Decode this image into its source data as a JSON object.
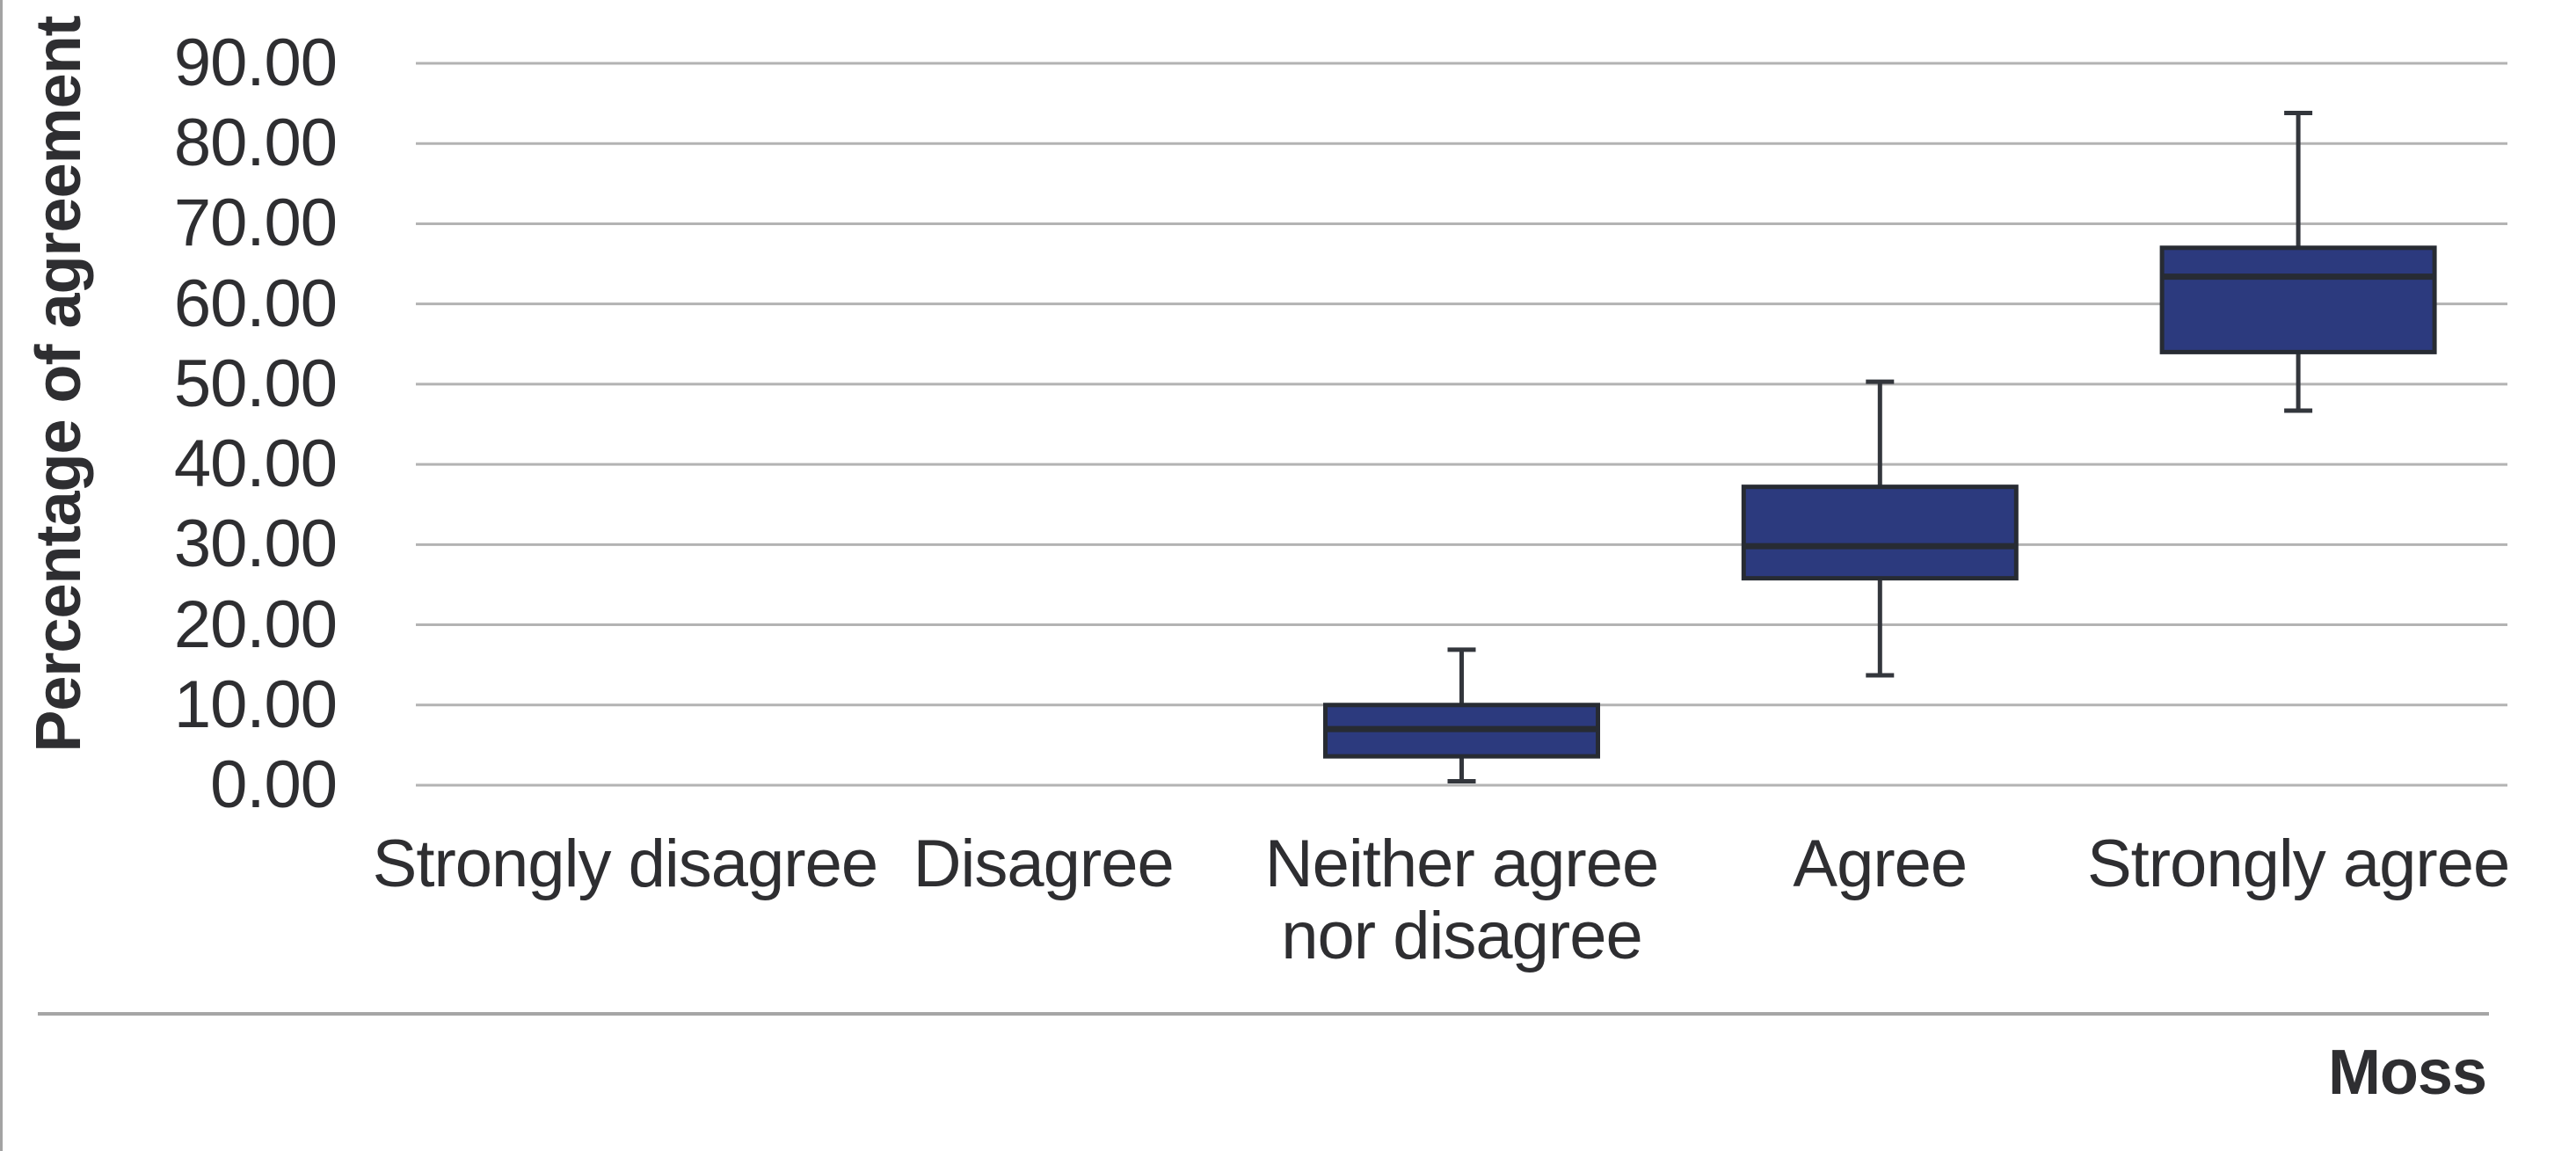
{
  "chart_data": {
    "type": "boxplot",
    "title": "",
    "ylabel": "Percentage of agreement",
    "group_label": "Moss",
    "ylim": [
      0,
      90
    ],
    "grid": "horizontal",
    "legend": "none",
    "y_ticks": [
      {
        "label": "0.00",
        "value": 0
      },
      {
        "label": "10.00",
        "value": 10
      },
      {
        "label": "20.00",
        "value": 20
      },
      {
        "label": "30.00",
        "value": 30
      },
      {
        "label": "40.00",
        "value": 40
      },
      {
        "label": "50.00",
        "value": 50
      },
      {
        "label": "60.00",
        "value": 60
      },
      {
        "label": "70.00",
        "value": 70
      },
      {
        "label": "80.00",
        "value": 80
      },
      {
        "label": "90.00",
        "value": 90
      }
    ],
    "categories": [
      "Strongly disagree",
      "Disagree",
      "Neither agree nor disagree",
      "Agree",
      "Strongly agree"
    ],
    "series": [
      {
        "category": "Strongly disagree",
        "tick_label": "Strongly disagree",
        "box": null
      },
      {
        "category": "Disagree",
        "tick_label": "Disagree",
        "box": null
      },
      {
        "category": "Neither agree nor disagree",
        "tick_label": "Neither agree\nnor disagree",
        "box": {
          "min": 0.5,
          "q1": 3.6,
          "median": 7.0,
          "q3": 10.0,
          "max": 16.9
        }
      },
      {
        "category": "Agree",
        "tick_label": "Agree",
        "box": {
          "min": 13.7,
          "q1": 25.8,
          "median": 29.8,
          "q3": 37.2,
          "max": 50.3
        }
      },
      {
        "category": "Strongly agree",
        "tick_label": "Strongly agree",
        "box": {
          "min": 46.7,
          "q1": 54.0,
          "median": 63.4,
          "q3": 67.0,
          "max": 83.8
        }
      }
    ],
    "colors": {
      "box_fill": "#2c3a7e",
      "box_border": "#272b33",
      "median_line": "#272b33",
      "whisker": "#33363c",
      "gridline": "#b3b3b3",
      "text": "#2e2e31",
      "divider": "#a6a6a6"
    }
  }
}
